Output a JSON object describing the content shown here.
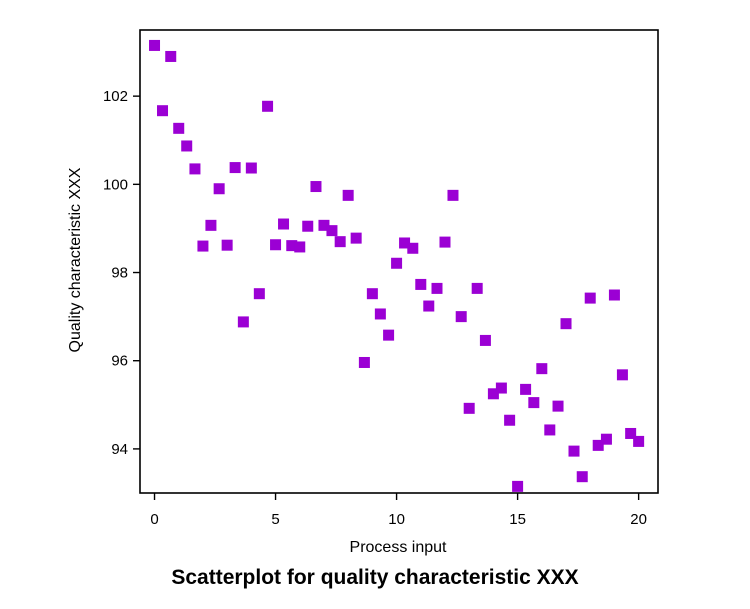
{
  "caption": "Scatterplot for quality characteristic XXX",
  "chart_data": {
    "type": "scatter",
    "title": "",
    "xlabel": "Process input",
    "ylabel": "Quality characteristic XXX",
    "xlim": [
      -0.6,
      20.8
    ],
    "ylim": [
      93.0,
      103.5
    ],
    "xticks": [
      0,
      5,
      10,
      15,
      20
    ],
    "yticks": [
      94,
      96,
      98,
      100,
      102
    ],
    "grid": false,
    "marker": "square",
    "marker_color": "#9b00d4",
    "series": [
      {
        "points": [
          [
            0.0,
            103.15
          ],
          [
            0.33,
            101.67
          ],
          [
            0.67,
            102.9
          ],
          [
            1.0,
            101.27
          ],
          [
            1.33,
            100.87
          ],
          [
            1.67,
            100.35
          ],
          [
            2.0,
            98.6
          ],
          [
            2.33,
            99.07
          ],
          [
            2.67,
            99.9
          ],
          [
            3.0,
            98.62
          ],
          [
            3.33,
            100.38
          ],
          [
            3.67,
            96.88
          ],
          [
            4.0,
            100.37
          ],
          [
            4.33,
            97.52
          ],
          [
            4.67,
            101.77
          ],
          [
            5.0,
            98.63
          ],
          [
            5.33,
            99.1
          ],
          [
            5.67,
            98.61
          ],
          [
            6.0,
            98.58
          ],
          [
            6.33,
            99.05
          ],
          [
            6.67,
            99.95
          ],
          [
            7.0,
            99.07
          ],
          [
            7.33,
            98.95
          ],
          [
            7.67,
            98.7
          ],
          [
            8.0,
            99.75
          ],
          [
            8.33,
            98.78
          ],
          [
            8.67,
            95.96
          ],
          [
            9.0,
            97.52
          ],
          [
            9.33,
            97.06
          ],
          [
            9.67,
            96.58
          ],
          [
            10.0,
            98.21
          ],
          [
            10.33,
            98.67
          ],
          [
            10.67,
            98.55
          ],
          [
            11.0,
            97.73
          ],
          [
            11.33,
            97.24
          ],
          [
            11.67,
            97.64
          ],
          [
            12.0,
            98.69
          ],
          [
            12.33,
            99.75
          ],
          [
            12.67,
            97.0
          ],
          [
            13.0,
            94.92
          ],
          [
            13.33,
            97.64
          ],
          [
            13.67,
            96.46
          ],
          [
            14.0,
            95.25
          ],
          [
            14.33,
            95.38
          ],
          [
            14.67,
            94.65
          ],
          [
            15.0,
            93.15
          ],
          [
            15.33,
            95.35
          ],
          [
            15.67,
            95.05
          ],
          [
            16.0,
            95.82
          ],
          [
            16.33,
            94.43
          ],
          [
            16.67,
            94.97
          ],
          [
            17.0,
            96.84
          ],
          [
            17.33,
            93.95
          ],
          [
            17.67,
            93.37
          ],
          [
            18.0,
            97.42
          ],
          [
            18.33,
            94.08
          ],
          [
            18.67,
            94.22
          ],
          [
            19.0,
            97.49
          ],
          [
            19.33,
            95.68
          ],
          [
            19.67,
            94.35
          ],
          [
            20.0,
            94.17
          ]
        ]
      }
    ]
  }
}
